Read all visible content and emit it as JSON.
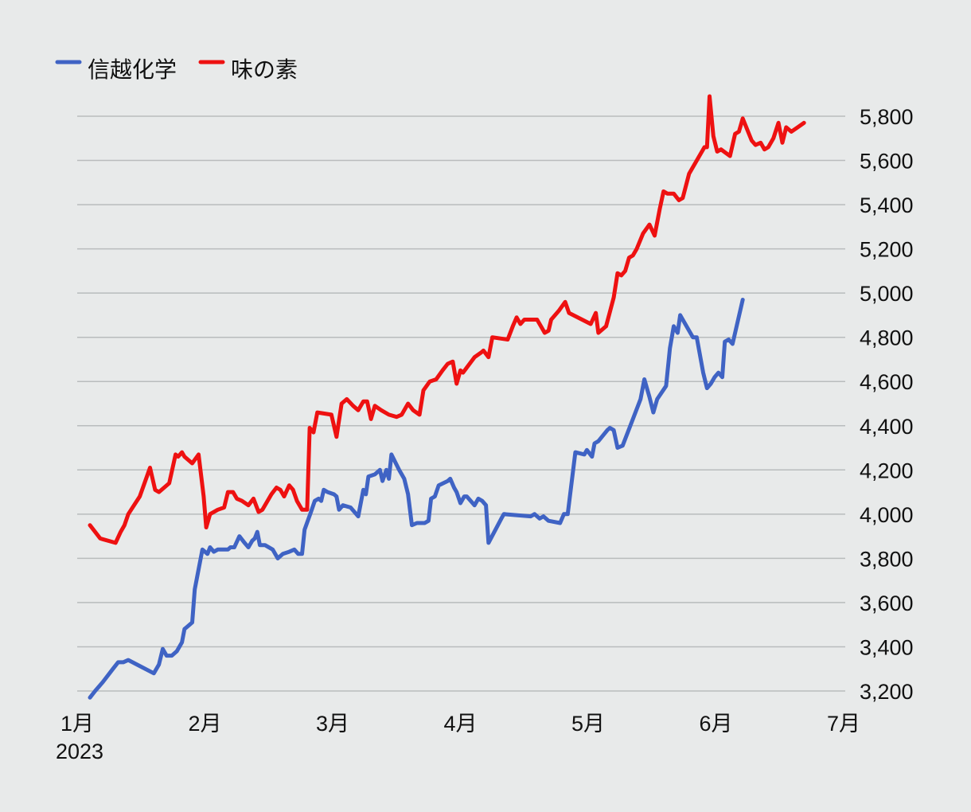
{
  "chart_data": {
    "type": "line",
    "title": "",
    "xlabel": "",
    "ylabel": "",
    "ylim": [
      3200,
      5800
    ],
    "y_ticks": [
      "3,200",
      "3,400",
      "3,600",
      "3,800",
      "4,000",
      "4,200",
      "4,400",
      "4,600",
      "4,800",
      "5,000",
      "5,200",
      "5,400",
      "5,600",
      "5,800"
    ],
    "y_tick_values": [
      3200,
      3400,
      3600,
      3800,
      4000,
      4200,
      4400,
      4600,
      4800,
      5000,
      5200,
      5400,
      5600,
      5800
    ],
    "x_ticks": [
      {
        "label": "1月",
        "sublabel": "2023",
        "month": 0
      },
      {
        "label": "2月",
        "month": 1
      },
      {
        "label": "3月",
        "month": 2
      },
      {
        "label": "4月",
        "month": 3
      },
      {
        "label": "5月",
        "month": 4
      },
      {
        "label": "6月",
        "month": 5
      },
      {
        "label": "7月",
        "month": 6
      }
    ],
    "grid": true,
    "legend_position": "top-left",
    "series": [
      {
        "name": "信越化学",
        "color": "#3f63c4",
        "points": [
          [
            0.1,
            3170
          ],
          [
            0.14,
            3200
          ],
          [
            0.2,
            3240
          ],
          [
            0.28,
            3300
          ],
          [
            0.32,
            3330
          ],
          [
            0.36,
            3330
          ],
          [
            0.4,
            3340
          ],
          [
            0.5,
            3310
          ],
          [
            0.6,
            3280
          ],
          [
            0.64,
            3320
          ],
          [
            0.67,
            3390
          ],
          [
            0.7,
            3360
          ],
          [
            0.74,
            3360
          ],
          [
            0.78,
            3380
          ],
          [
            0.82,
            3420
          ],
          [
            0.84,
            3480
          ],
          [
            0.86,
            3490
          ],
          [
            0.88,
            3500
          ],
          [
            0.9,
            3510
          ],
          [
            0.92,
            3660
          ],
          [
            0.94,
            3720
          ],
          [
            0.98,
            3840
          ],
          [
            1.02,
            3820
          ],
          [
            1.04,
            3850
          ],
          [
            1.07,
            3830
          ],
          [
            1.1,
            3840
          ],
          [
            1.14,
            3840
          ],
          [
            1.18,
            3840
          ],
          [
            1.2,
            3850
          ],
          [
            1.23,
            3850
          ],
          [
            1.27,
            3900
          ],
          [
            1.31,
            3870
          ],
          [
            1.34,
            3850
          ],
          [
            1.37,
            3880
          ],
          [
            1.39,
            3890
          ],
          [
            1.41,
            3920
          ],
          [
            1.43,
            3860
          ],
          [
            1.47,
            3860
          ],
          [
            1.53,
            3840
          ],
          [
            1.57,
            3800
          ],
          [
            1.61,
            3820
          ],
          [
            1.66,
            3830
          ],
          [
            1.7,
            3840
          ],
          [
            1.73,
            3820
          ],
          [
            1.76,
            3820
          ],
          [
            1.78,
            3930
          ],
          [
            1.83,
            4010
          ],
          [
            1.86,
            4060
          ],
          [
            1.89,
            4070
          ],
          [
            1.91,
            4060
          ],
          [
            1.93,
            4110
          ],
          [
            1.96,
            4100
          ],
          [
            2.01,
            4090
          ],
          [
            2.03,
            4080
          ],
          [
            2.05,
            4020
          ],
          [
            2.08,
            4040
          ],
          [
            2.14,
            4030
          ],
          [
            2.2,
            3990
          ],
          [
            2.24,
            4110
          ],
          [
            2.26,
            4090
          ],
          [
            2.28,
            4170
          ],
          [
            2.33,
            4180
          ],
          [
            2.37,
            4200
          ],
          [
            2.39,
            4150
          ],
          [
            2.42,
            4200
          ],
          [
            2.44,
            4160
          ],
          [
            2.46,
            4270
          ],
          [
            2.52,
            4200
          ],
          [
            2.56,
            4160
          ],
          [
            2.59,
            4090
          ],
          [
            2.62,
            3950
          ],
          [
            2.66,
            3960
          ],
          [
            2.72,
            3960
          ],
          [
            2.75,
            3970
          ],
          [
            2.77,
            4070
          ],
          [
            2.8,
            4080
          ],
          [
            2.83,
            4130
          ],
          [
            2.9,
            4150
          ],
          [
            2.92,
            4160
          ],
          [
            2.95,
            4120
          ],
          [
            2.97,
            4100
          ],
          [
            3.0,
            4050
          ],
          [
            3.03,
            4080
          ],
          [
            3.05,
            4080
          ],
          [
            3.11,
            4040
          ],
          [
            3.14,
            4070
          ],
          [
            3.17,
            4060
          ],
          [
            3.2,
            4040
          ],
          [
            3.22,
            3870
          ],
          [
            3.32,
            3980
          ],
          [
            3.34,
            4000
          ],
          [
            3.55,
            3990
          ],
          [
            3.58,
            4000
          ],
          [
            3.62,
            3980
          ],
          [
            3.65,
            3990
          ],
          [
            3.69,
            3970
          ],
          [
            3.78,
            3960
          ],
          [
            3.81,
            4000
          ],
          [
            3.84,
            4000
          ],
          [
            3.9,
            4280
          ],
          [
            3.97,
            4270
          ],
          [
            3.99,
            4290
          ],
          [
            4.03,
            4260
          ],
          [
            4.05,
            4320
          ],
          [
            4.08,
            4330
          ],
          [
            4.15,
            4380
          ],
          [
            4.17,
            4390
          ],
          [
            4.2,
            4380
          ],
          [
            4.23,
            4300
          ],
          [
            4.27,
            4310
          ],
          [
            4.35,
            4430
          ],
          [
            4.41,
            4520
          ],
          [
            4.44,
            4610
          ],
          [
            4.48,
            4530
          ],
          [
            4.51,
            4460
          ],
          [
            4.54,
            4520
          ],
          [
            4.61,
            4580
          ],
          [
            4.64,
            4750
          ],
          [
            4.67,
            4850
          ],
          [
            4.7,
            4820
          ],
          [
            4.72,
            4900
          ],
          [
            4.79,
            4830
          ],
          [
            4.82,
            4800
          ],
          [
            4.85,
            4800
          ],
          [
            4.9,
            4640
          ],
          [
            4.93,
            4570
          ],
          [
            4.96,
            4590
          ],
          [
            4.99,
            4620
          ],
          [
            5.02,
            4640
          ],
          [
            5.05,
            4620
          ],
          [
            5.07,
            4780
          ],
          [
            5.1,
            4790
          ],
          [
            5.13,
            4770
          ],
          [
            5.21,
            4970
          ]
        ]
      },
      {
        "name": "味の素",
        "color": "#ee1111",
        "points": [
          [
            0.1,
            3950
          ],
          [
            0.18,
            3890
          ],
          [
            0.3,
            3870
          ],
          [
            0.34,
            3920
          ],
          [
            0.37,
            3950
          ],
          [
            0.4,
            4000
          ],
          [
            0.49,
            4080
          ],
          [
            0.57,
            4210
          ],
          [
            0.61,
            4110
          ],
          [
            0.64,
            4100
          ],
          [
            0.72,
            4140
          ],
          [
            0.77,
            4270
          ],
          [
            0.79,
            4260
          ],
          [
            0.82,
            4280
          ],
          [
            0.84,
            4260
          ],
          [
            0.9,
            4230
          ],
          [
            0.95,
            4270
          ],
          [
            0.99,
            4080
          ],
          [
            1.01,
            3940
          ],
          [
            1.04,
            4000
          ],
          [
            1.1,
            4020
          ],
          [
            1.15,
            4030
          ],
          [
            1.18,
            4100
          ],
          [
            1.22,
            4100
          ],
          [
            1.25,
            4070
          ],
          [
            1.29,
            4060
          ],
          [
            1.34,
            4040
          ],
          [
            1.38,
            4070
          ],
          [
            1.42,
            4010
          ],
          [
            1.45,
            4020
          ],
          [
            1.52,
            4090
          ],
          [
            1.56,
            4120
          ],
          [
            1.59,
            4110
          ],
          [
            1.62,
            4080
          ],
          [
            1.66,
            4130
          ],
          [
            1.69,
            4110
          ],
          [
            1.72,
            4060
          ],
          [
            1.76,
            4020
          ],
          [
            1.8,
            4020
          ],
          [
            1.82,
            4390
          ],
          [
            1.85,
            4370
          ],
          [
            1.88,
            4460
          ],
          [
            1.99,
            4450
          ],
          [
            2.03,
            4350
          ],
          [
            2.07,
            4500
          ],
          [
            2.11,
            4520
          ],
          [
            2.16,
            4490
          ],
          [
            2.2,
            4470
          ],
          [
            2.24,
            4510
          ],
          [
            2.27,
            4510
          ],
          [
            2.3,
            4430
          ],
          [
            2.33,
            4490
          ],
          [
            2.38,
            4470
          ],
          [
            2.44,
            4450
          ],
          [
            2.5,
            4440
          ],
          [
            2.54,
            4450
          ],
          [
            2.59,
            4500
          ],
          [
            2.63,
            4470
          ],
          [
            2.68,
            4450
          ],
          [
            2.71,
            4560
          ],
          [
            2.76,
            4600
          ],
          [
            2.81,
            4610
          ],
          [
            2.86,
            4650
          ],
          [
            2.9,
            4680
          ],
          [
            2.94,
            4690
          ],
          [
            2.97,
            4590
          ],
          [
            3.0,
            4650
          ],
          [
            3.02,
            4640
          ],
          [
            3.11,
            4710
          ],
          [
            3.16,
            4730
          ],
          [
            3.18,
            4740
          ],
          [
            3.22,
            4710
          ],
          [
            3.25,
            4800
          ],
          [
            3.37,
            4790
          ],
          [
            3.41,
            4850
          ],
          [
            3.44,
            4890
          ],
          [
            3.47,
            4860
          ],
          [
            3.5,
            4880
          ],
          [
            3.6,
            4880
          ],
          [
            3.63,
            4850
          ],
          [
            3.66,
            4820
          ],
          [
            3.69,
            4830
          ],
          [
            3.71,
            4880
          ],
          [
            3.77,
            4920
          ],
          [
            3.82,
            4960
          ],
          [
            3.85,
            4910
          ],
          [
            4.02,
            4860
          ],
          [
            4.06,
            4910
          ],
          [
            4.08,
            4820
          ],
          [
            4.14,
            4850
          ],
          [
            4.2,
            4980
          ],
          [
            4.23,
            5090
          ],
          [
            4.26,
            5080
          ],
          [
            4.29,
            5100
          ],
          [
            4.32,
            5160
          ],
          [
            4.35,
            5170
          ],
          [
            4.38,
            5200
          ],
          [
            4.43,
            5270
          ],
          [
            4.48,
            5310
          ],
          [
            4.52,
            5260
          ],
          [
            4.56,
            5380
          ],
          [
            4.59,
            5460
          ],
          [
            4.62,
            5450
          ],
          [
            4.67,
            5450
          ],
          [
            4.71,
            5420
          ],
          [
            4.74,
            5430
          ],
          [
            4.79,
            5540
          ],
          [
            4.91,
            5660
          ],
          [
            4.93,
            5660
          ],
          [
            4.95,
            5890
          ],
          [
            4.98,
            5710
          ],
          [
            5.01,
            5640
          ],
          [
            5.04,
            5650
          ],
          [
            5.11,
            5620
          ],
          [
            5.15,
            5720
          ],
          [
            5.18,
            5730
          ],
          [
            5.21,
            5790
          ],
          [
            5.28,
            5690
          ],
          [
            5.31,
            5670
          ],
          [
            5.35,
            5680
          ],
          [
            5.38,
            5650
          ],
          [
            5.41,
            5660
          ],
          [
            5.45,
            5700
          ],
          [
            5.49,
            5770
          ],
          [
            5.52,
            5680
          ],
          [
            5.55,
            5750
          ],
          [
            5.59,
            5730
          ],
          [
            5.64,
            5750
          ],
          [
            5.69,
            5770
          ]
        ]
      }
    ]
  }
}
